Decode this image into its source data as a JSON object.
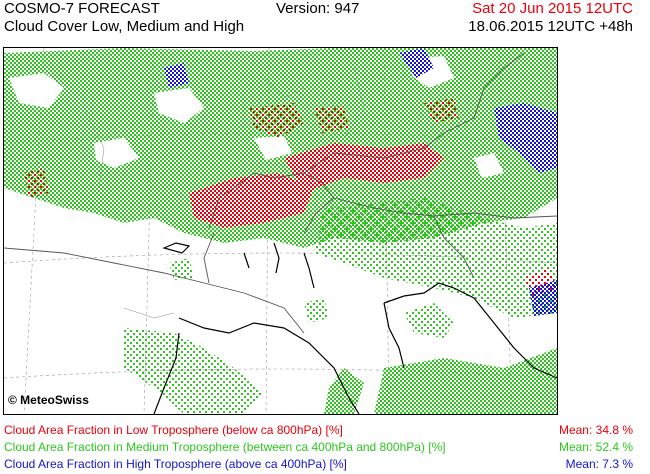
{
  "header": {
    "model": "COSMO-7 FORECAST",
    "product": "Cloud Cover Low, Medium and High",
    "version": "Version: 947",
    "valid_time": "Sat 20 Jun 2015 12UTC",
    "run_time": "18.06.2015 12UTC +48h"
  },
  "credit": "© MeteoSwiss",
  "legend": [
    {
      "label": "Cloud Area Fraction in Low Troposphere (below ca 800hPa) [%]",
      "mean": "Mean:  34.8 %",
      "color": "#e8000b"
    },
    {
      "label": "Cloud Area Fraction in Medium Troposphere (between ca 400hPa and 800hPa) [%]",
      "mean": "Mean:  52.4 %",
      "color": "#2ec61e"
    },
    {
      "label": "Cloud Area Fraction in High Troposphere (above ca 400hPa) [%]",
      "mean": "Mean:  7.3 %",
      "color": "#1414d2"
    }
  ],
  "colors": {
    "low_cloud": "#e8000b",
    "medium_cloud": "#2ec61e",
    "high_cloud": "#1414d2",
    "coastline": "#000000",
    "border": "#555555"
  }
}
